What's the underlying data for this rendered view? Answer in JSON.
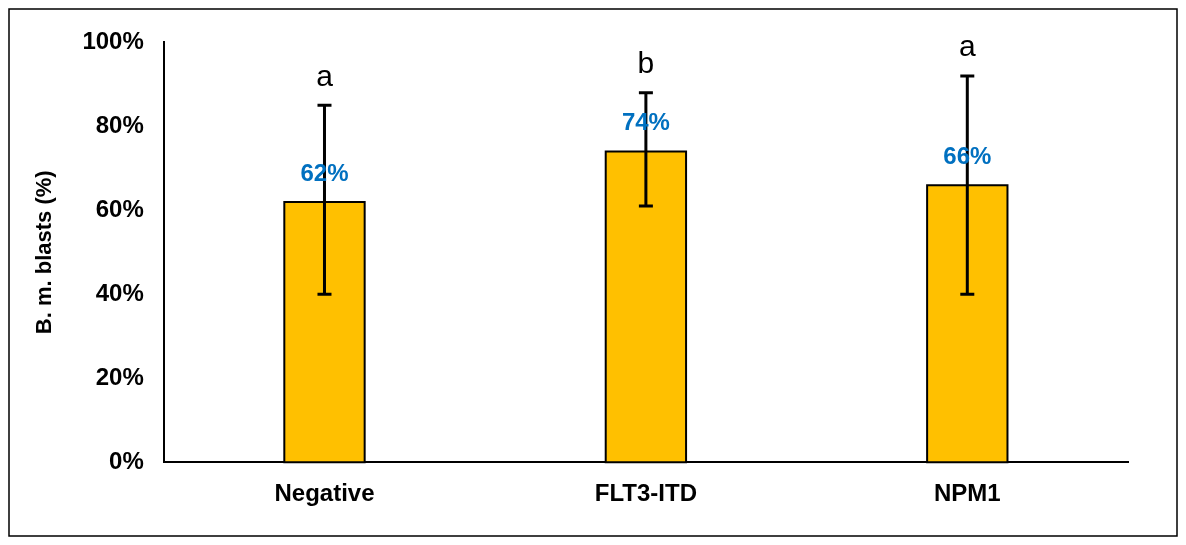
{
  "chart_data": {
    "type": "bar",
    "ylabel": "B. m. blasts (%)",
    "categories": [
      "Negative",
      "FLT3-ITD",
      "NPM1"
    ],
    "values": [
      62,
      74,
      66
    ],
    "color": "#ffc000",
    "errors": [
      [
        40,
        85
      ],
      [
        61,
        88
      ],
      [
        40,
        92
      ]
    ],
    "value_labels": [
      "62%",
      "74%",
      "66%"
    ],
    "annotations": [
      "a",
      "b",
      "a"
    ],
    "ylim": [
      0,
      100
    ],
    "yticks": [
      {
        "value": 0,
        "label": "0%"
      },
      {
        "value": 20,
        "label": "20%"
      },
      {
        "value": 40,
        "label": "40%"
      },
      {
        "value": 60,
        "label": "60%"
      },
      {
        "value": 80,
        "label": "80%"
      },
      {
        "value": 100,
        "label": "100%"
      }
    ],
    "grid": false,
    "legend": false
  }
}
